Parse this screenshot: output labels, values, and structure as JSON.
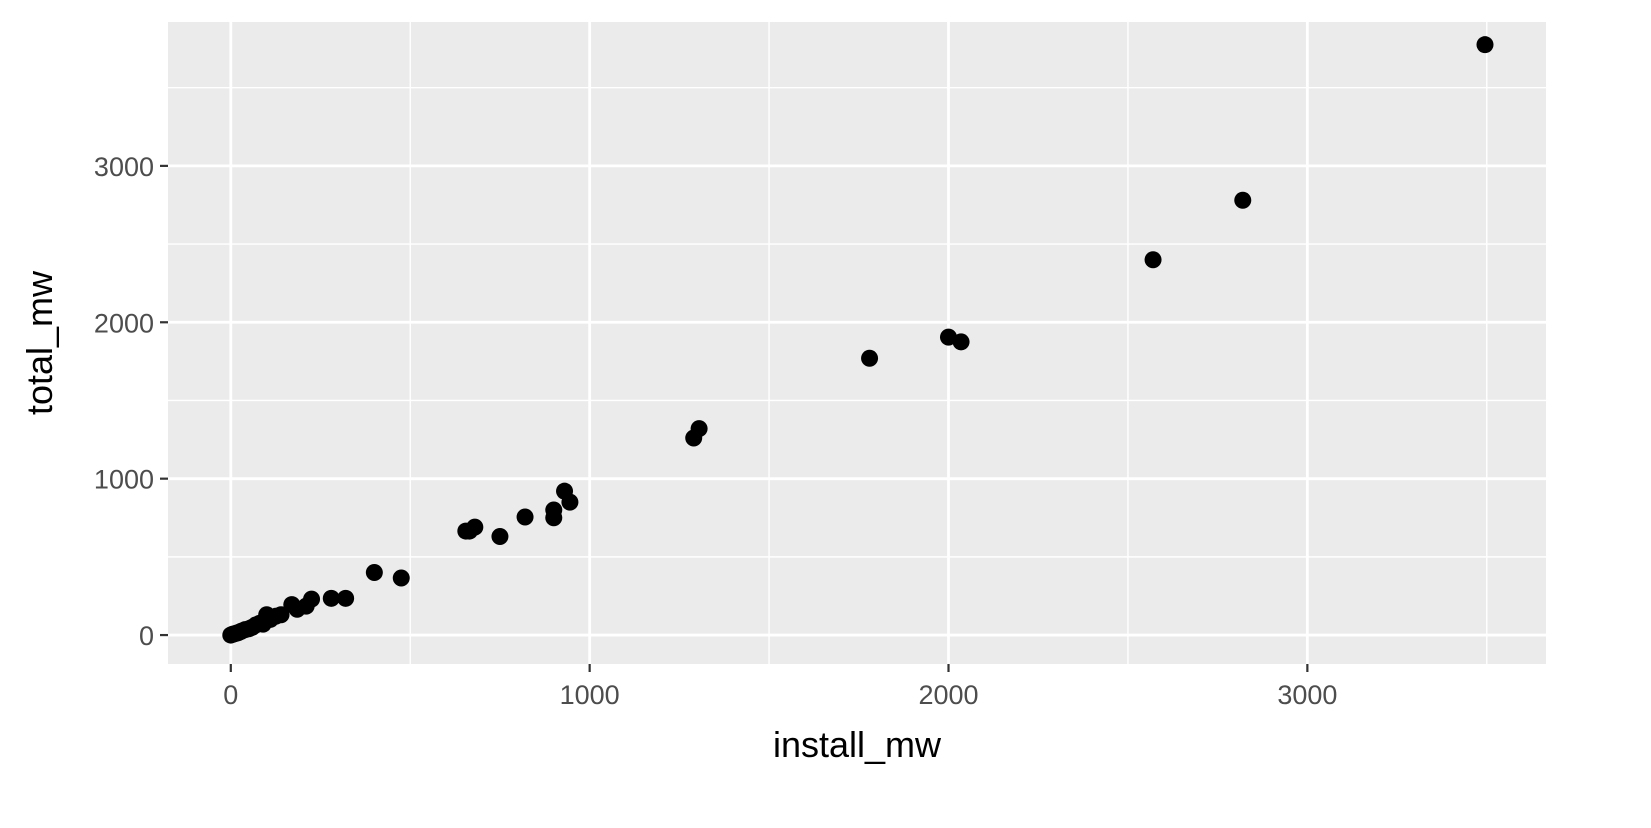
{
  "chart_data": {
    "type": "scatter",
    "title": "",
    "xlabel": "install_mw",
    "ylabel": "total_mw",
    "xlim": [
      -175,
      3665
    ],
    "ylim": [
      -185,
      3920
    ],
    "x_ticks": [
      0,
      1000,
      2000,
      3000
    ],
    "y_ticks": [
      0,
      1000,
      2000,
      3000
    ],
    "x_tick_labels": [
      "0",
      "1000",
      "2000",
      "3000"
    ],
    "y_tick_labels": [
      "0",
      "1000",
      "2000",
      "3000"
    ],
    "grid": true,
    "legend": "none",
    "colors": {
      "panel": "#ebebeb",
      "grid": "#ffffff",
      "point": "#000000",
      "tick": "#4d4d4d"
    },
    "points": [
      {
        "x": 0,
        "y": 0
      },
      {
        "x": 5,
        "y": 5
      },
      {
        "x": 10,
        "y": 8
      },
      {
        "x": 15,
        "y": 12
      },
      {
        "x": 20,
        "y": 15
      },
      {
        "x": 25,
        "y": 20
      },
      {
        "x": 30,
        "y": 25
      },
      {
        "x": 40,
        "y": 35
      },
      {
        "x": 50,
        "y": 40
      },
      {
        "x": 60,
        "y": 50
      },
      {
        "x": 70,
        "y": 65
      },
      {
        "x": 80,
        "y": 75
      },
      {
        "x": 90,
        "y": 70
      },
      {
        "x": 100,
        "y": 95
      },
      {
        "x": 100,
        "y": 130
      },
      {
        "x": 110,
        "y": 100
      },
      {
        "x": 125,
        "y": 120
      },
      {
        "x": 140,
        "y": 130
      },
      {
        "x": 170,
        "y": 195
      },
      {
        "x": 185,
        "y": 165
      },
      {
        "x": 210,
        "y": 185
      },
      {
        "x": 225,
        "y": 230
      },
      {
        "x": 280,
        "y": 235
      },
      {
        "x": 320,
        "y": 235
      },
      {
        "x": 400,
        "y": 400
      },
      {
        "x": 475,
        "y": 365
      },
      {
        "x": 655,
        "y": 665
      },
      {
        "x": 665,
        "y": 665
      },
      {
        "x": 680,
        "y": 690
      },
      {
        "x": 750,
        "y": 630
      },
      {
        "x": 820,
        "y": 755
      },
      {
        "x": 900,
        "y": 750
      },
      {
        "x": 900,
        "y": 800
      },
      {
        "x": 930,
        "y": 920
      },
      {
        "x": 945,
        "y": 850
      },
      {
        "x": 1290,
        "y": 1260
      },
      {
        "x": 1305,
        "y": 1320
      },
      {
        "x": 1780,
        "y": 1770
      },
      {
        "x": 2000,
        "y": 1905
      },
      {
        "x": 2035,
        "y": 1875
      },
      {
        "x": 2570,
        "y": 2400
      },
      {
        "x": 2820,
        "y": 2780
      },
      {
        "x": 3495,
        "y": 3775
      }
    ]
  }
}
